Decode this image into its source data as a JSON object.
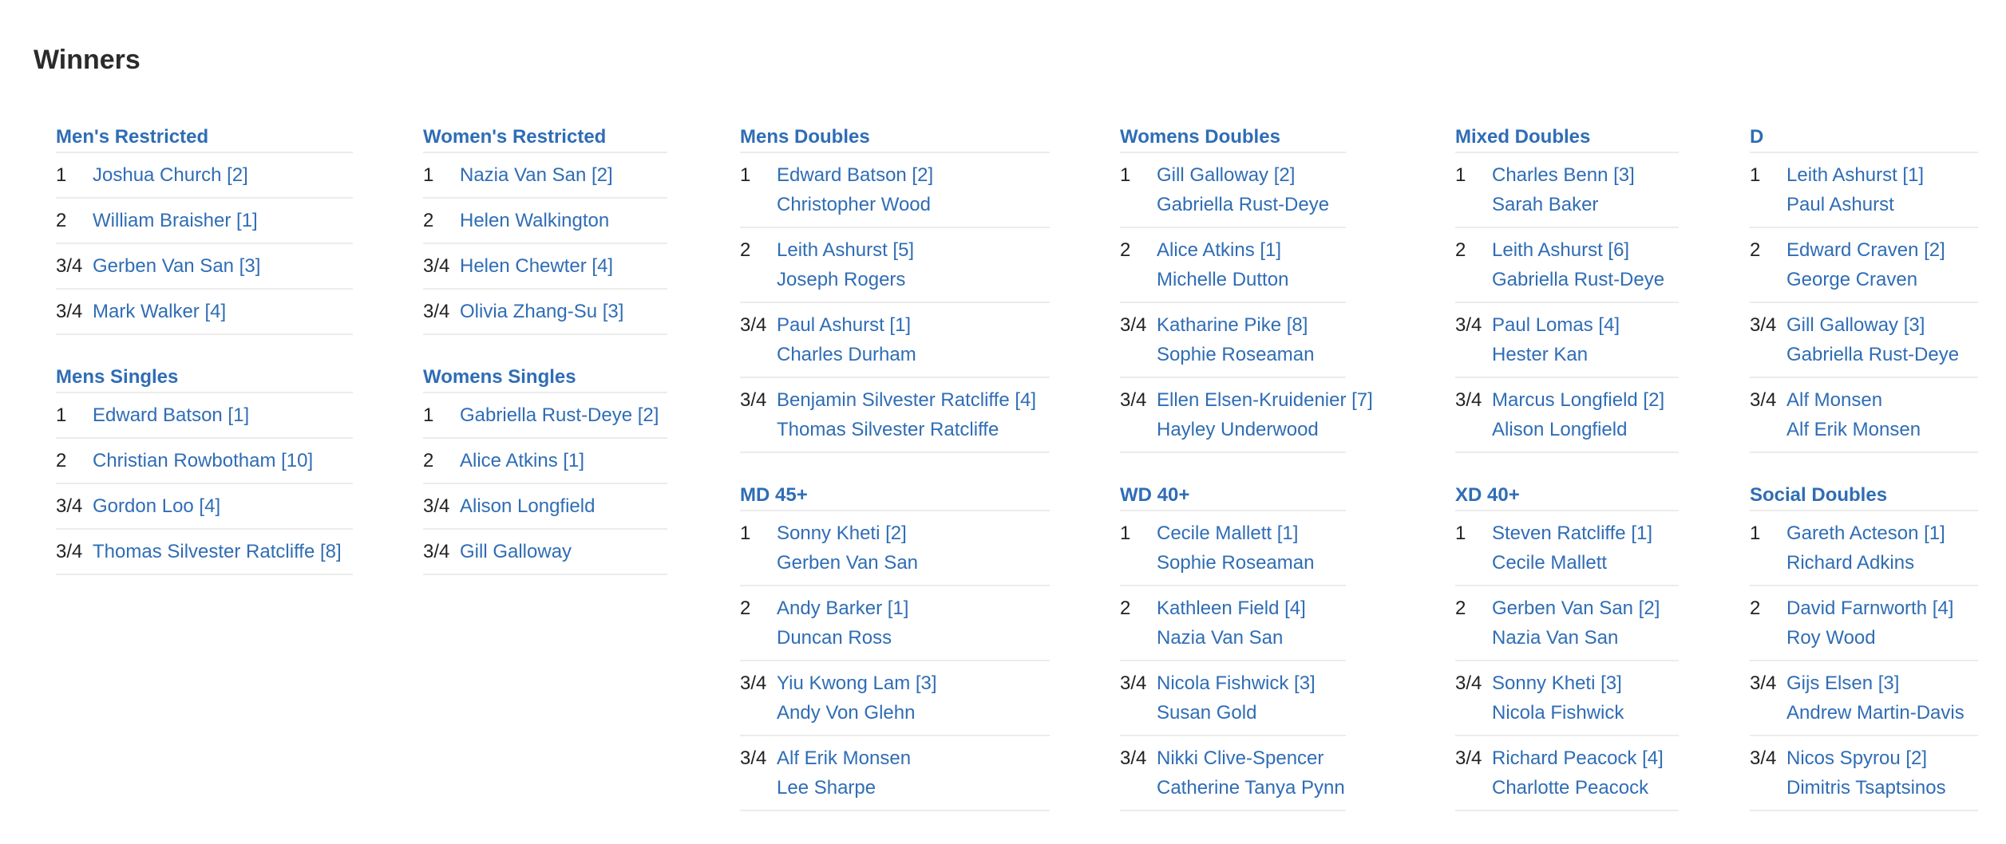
{
  "title": "Winners",
  "link_color": "#2f6db5",
  "columns": [
    {
      "sections": [
        {
          "title": "Men's Restricted",
          "rows": [
            {
              "pos": "1",
              "names": [
                "Joshua Church [2]"
              ]
            },
            {
              "pos": "2",
              "names": [
                "William Braisher [1]"
              ]
            },
            {
              "pos": "3/4",
              "names": [
                "Gerben Van San [3]"
              ]
            },
            {
              "pos": "3/4",
              "names": [
                "Mark Walker [4]"
              ]
            }
          ]
        },
        {
          "title": "Mens Singles",
          "rows": [
            {
              "pos": "1",
              "names": [
                "Edward Batson [1]"
              ]
            },
            {
              "pos": "2",
              "names": [
                "Christian Rowbotham [10]"
              ]
            },
            {
              "pos": "3/4",
              "names": [
                "Gordon Loo [4]"
              ]
            },
            {
              "pos": "3/4",
              "names": [
                "Thomas Silvester Ratcliffe [8]"
              ]
            }
          ]
        }
      ]
    },
    {
      "sections": [
        {
          "title": "Women's Restricted",
          "rows": [
            {
              "pos": "1",
              "names": [
                "Nazia Van San [2]"
              ]
            },
            {
              "pos": "2",
              "names": [
                "Helen Walkington"
              ]
            },
            {
              "pos": "3/4",
              "names": [
                "Helen Chewter [4]"
              ]
            },
            {
              "pos": "3/4",
              "names": [
                "Olivia Zhang-Su [3]"
              ]
            }
          ]
        },
        {
          "title": "Womens Singles",
          "rows": [
            {
              "pos": "1",
              "names": [
                "Gabriella Rust-Deye [2]"
              ]
            },
            {
              "pos": "2",
              "names": [
                "Alice Atkins [1]"
              ]
            },
            {
              "pos": "3/4",
              "names": [
                "Alison Longfield"
              ]
            },
            {
              "pos": "3/4",
              "names": [
                "Gill Galloway"
              ]
            }
          ]
        }
      ]
    },
    {
      "sections": [
        {
          "title": "Mens Doubles",
          "rows": [
            {
              "pos": "1",
              "names": [
                "Edward Batson [2]",
                "Christopher Wood"
              ]
            },
            {
              "pos": "2",
              "names": [
                "Leith Ashurst [5]",
                "Joseph Rogers"
              ]
            },
            {
              "pos": "3/4",
              "names": [
                "Paul Ashurst [1]",
                "Charles Durham"
              ]
            },
            {
              "pos": "3/4",
              "names": [
                "Benjamin Silvester Ratcliffe [4]",
                "Thomas Silvester Ratcliffe"
              ]
            }
          ]
        },
        {
          "title": "MD 45+",
          "rows": [
            {
              "pos": "1",
              "names": [
                "Sonny Kheti [2]",
                "Gerben Van San"
              ]
            },
            {
              "pos": "2",
              "names": [
                "Andy Barker [1]",
                "Duncan Ross"
              ]
            },
            {
              "pos": "3/4",
              "names": [
                "Yiu Kwong Lam [3]",
                "Andy Von Glehn"
              ]
            },
            {
              "pos": "3/4",
              "names": [
                "Alf Erik Monsen",
                "Lee Sharpe"
              ]
            }
          ]
        }
      ]
    },
    {
      "sections": [
        {
          "title": "Womens Doubles",
          "rows": [
            {
              "pos": "1",
              "names": [
                "Gill Galloway [2]",
                "Gabriella Rust-Deye"
              ]
            },
            {
              "pos": "2",
              "names": [
                "Alice Atkins [1]",
                "Michelle Dutton"
              ]
            },
            {
              "pos": "3/4",
              "names": [
                "Katharine Pike [8]",
                "Sophie Roseaman"
              ]
            },
            {
              "pos": "3/4",
              "names": [
                "Ellen Elsen-Kruidenier [7]",
                "Hayley Underwood"
              ]
            }
          ]
        },
        {
          "title": "WD 40+",
          "rows": [
            {
              "pos": "1",
              "names": [
                "Cecile Mallett [1]",
                "Sophie Roseaman"
              ]
            },
            {
              "pos": "2",
              "names": [
                "Kathleen Field [4]",
                "Nazia Van San"
              ]
            },
            {
              "pos": "3/4",
              "names": [
                "Nicola Fishwick [3]",
                "Susan Gold"
              ]
            },
            {
              "pos": "3/4",
              "names": [
                "Nikki Clive-Spencer",
                "Catherine Tanya Pynn"
              ]
            }
          ]
        }
      ]
    },
    {
      "sections": [
        {
          "title": "Mixed Doubles",
          "rows": [
            {
              "pos": "1",
              "names": [
                "Charles Benn [3]",
                "Sarah Baker"
              ]
            },
            {
              "pos": "2",
              "names": [
                "Leith Ashurst [6]",
                "Gabriella Rust-Deye"
              ]
            },
            {
              "pos": "3/4",
              "names": [
                "Paul Lomas [4]",
                "Hester Kan"
              ]
            },
            {
              "pos": "3/4",
              "names": [
                "Marcus Longfield [2]",
                "Alison Longfield"
              ]
            }
          ]
        },
        {
          "title": "XD 40+",
          "rows": [
            {
              "pos": "1",
              "names": [
                "Steven Ratcliffe [1]",
                "Cecile Mallett"
              ]
            },
            {
              "pos": "2",
              "names": [
                "Gerben Van San [2]",
                "Nazia Van San"
              ]
            },
            {
              "pos": "3/4",
              "names": [
                "Sonny Kheti [3]",
                "Nicola Fishwick"
              ]
            },
            {
              "pos": "3/4",
              "names": [
                "Richard Peacock [4]",
                "Charlotte Peacock"
              ]
            }
          ]
        }
      ]
    },
    {
      "sections": [
        {
          "title": "D",
          "rows": [
            {
              "pos": "1",
              "names": [
                "Leith Ashurst [1]",
                "Paul Ashurst"
              ]
            },
            {
              "pos": "2",
              "names": [
                "Edward Craven [2]",
                "George Craven"
              ]
            },
            {
              "pos": "3/4",
              "names": [
                "Gill Galloway [3]",
                "Gabriella Rust-Deye"
              ]
            },
            {
              "pos": "3/4",
              "names": [
                "Alf Monsen",
                "Alf Erik Monsen"
              ]
            }
          ]
        },
        {
          "title": "Social Doubles",
          "rows": [
            {
              "pos": "1",
              "names": [
                "Gareth Acteson [1]",
                "Richard Adkins"
              ]
            },
            {
              "pos": "2",
              "names": [
                "David Farnworth [4]",
                "Roy Wood"
              ]
            },
            {
              "pos": "3/4",
              "names": [
                "Gijs Elsen [3]",
                "Andrew Martin-Davis"
              ]
            },
            {
              "pos": "3/4",
              "names": [
                "Nicos Spyrou [2]",
                "Dimitris Tsaptsinos"
              ]
            }
          ]
        }
      ]
    }
  ]
}
